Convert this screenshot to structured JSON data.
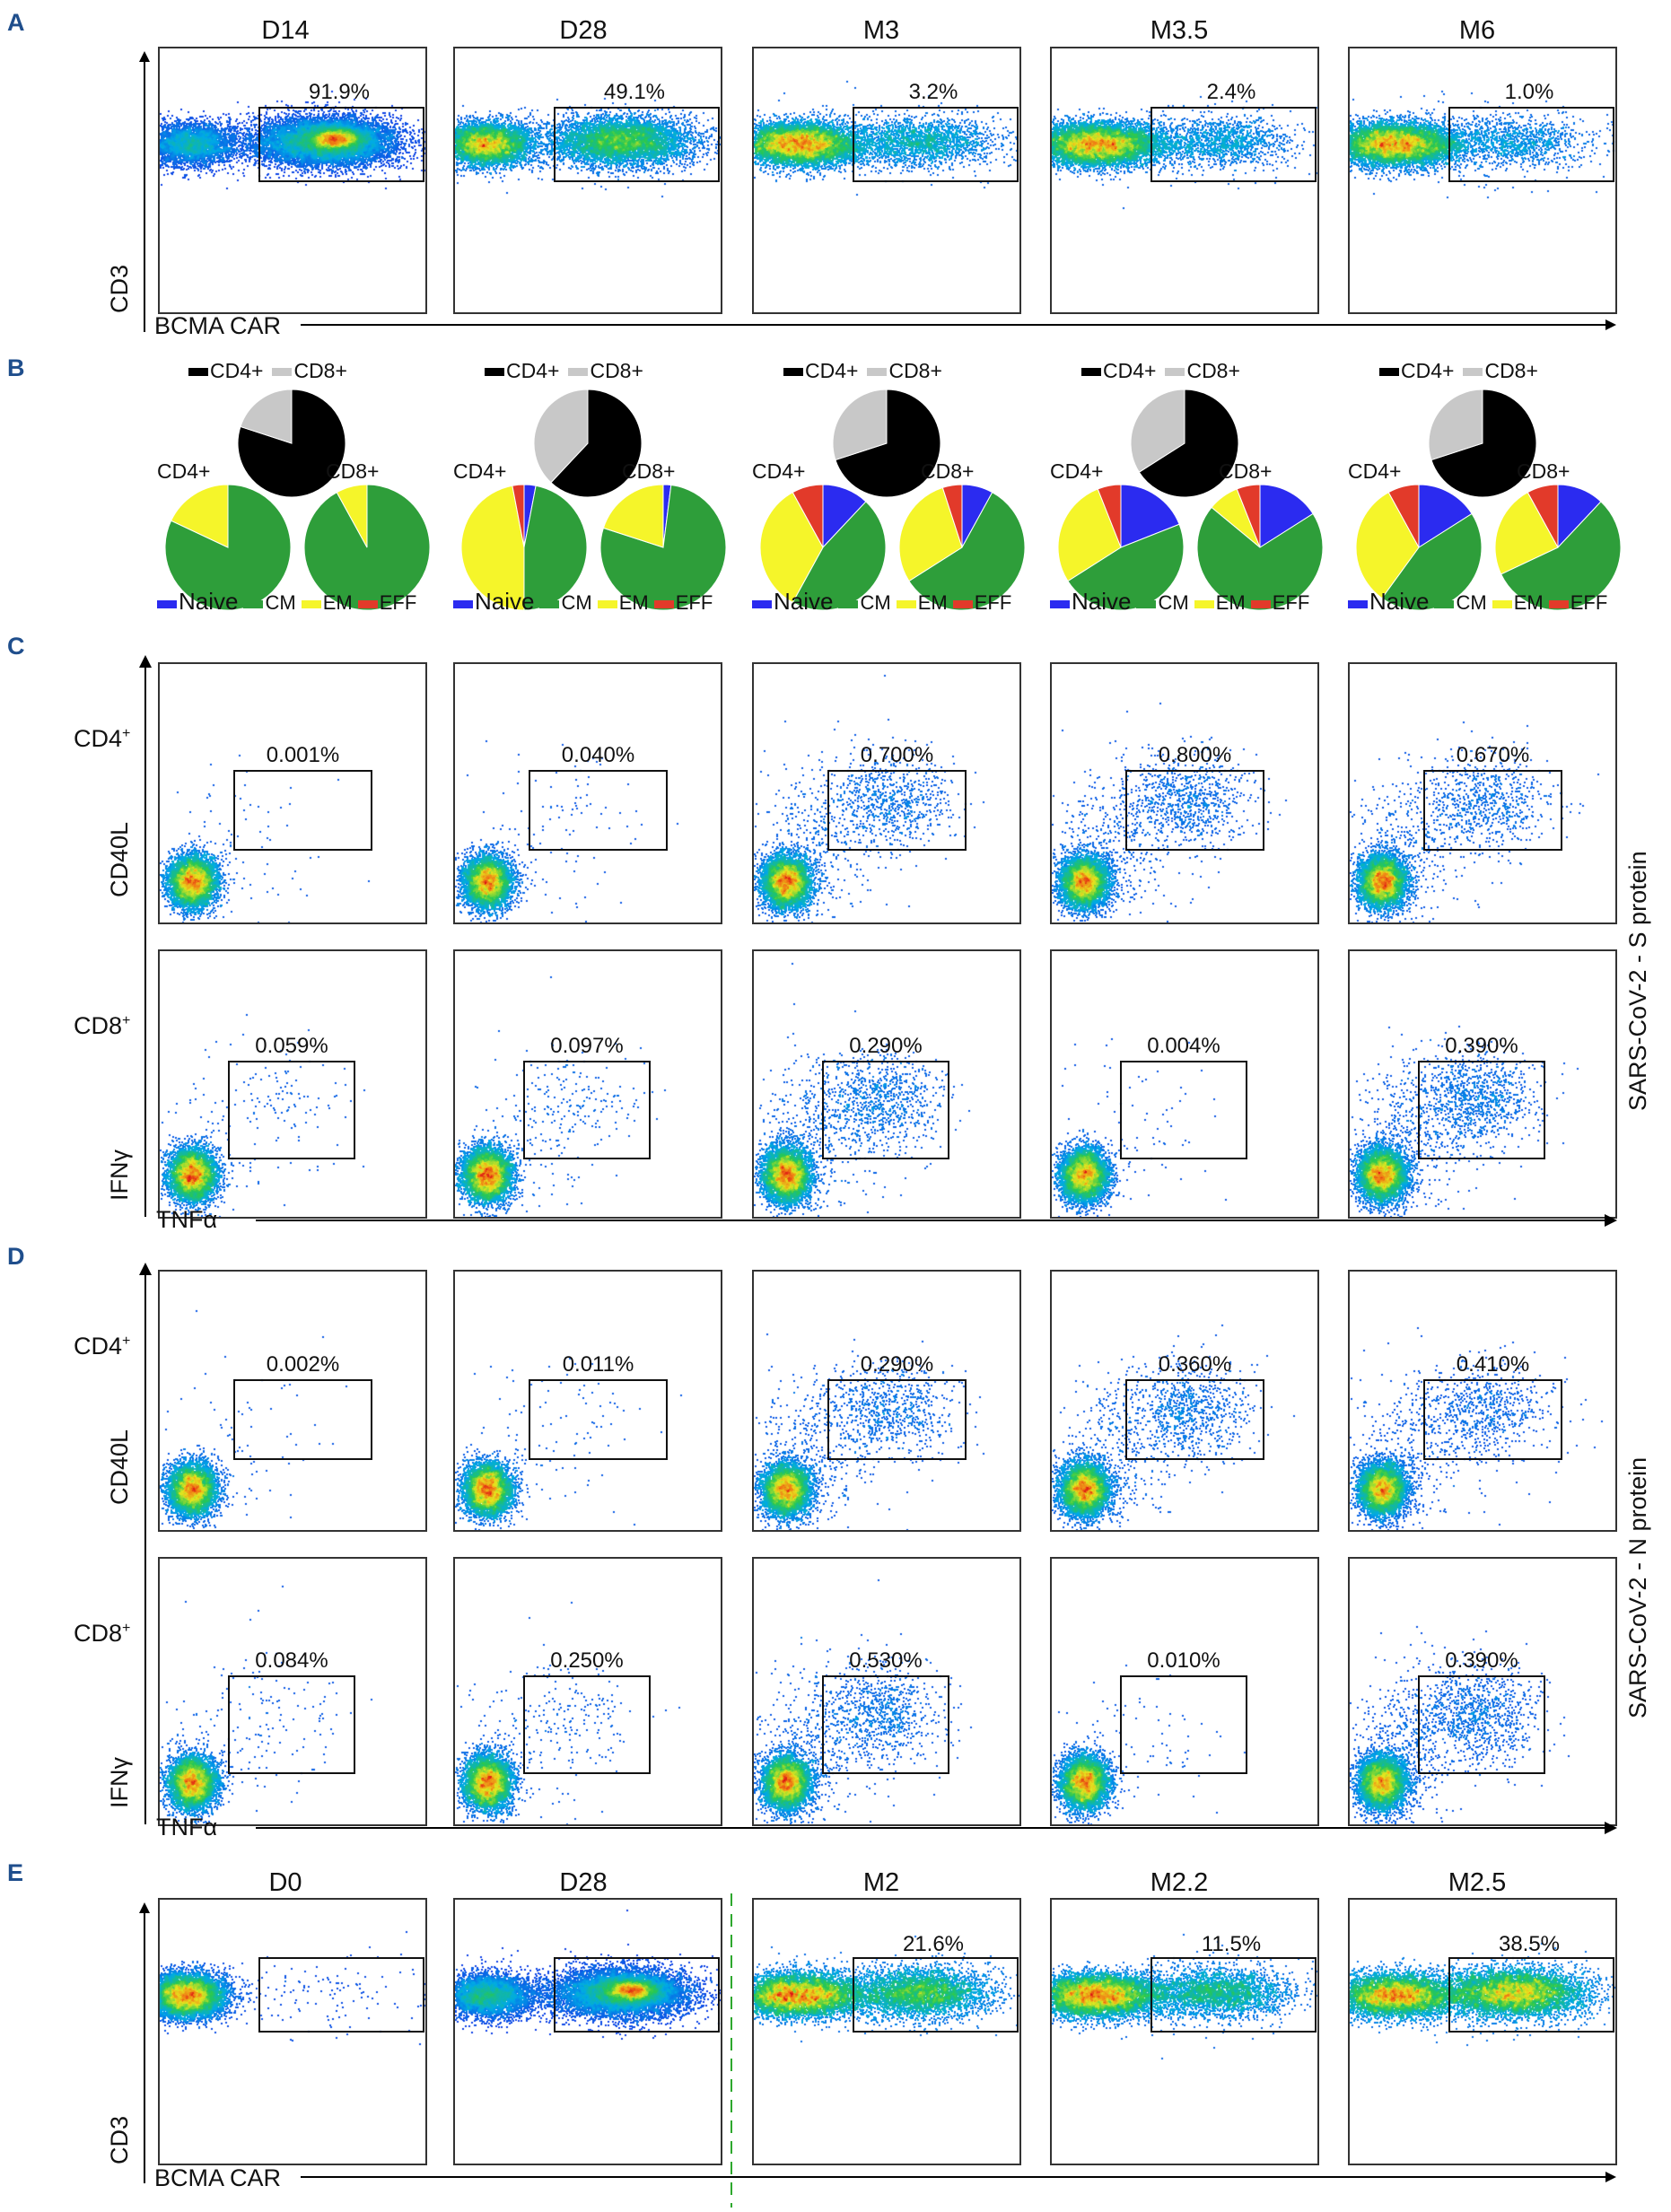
{
  "panel_labels": {
    "A": "A",
    "B": "B",
    "C": "C",
    "D": "D",
    "E": "E"
  },
  "colors": {
    "naive": "#2b2bf0",
    "cm": "#2e9e3a",
    "em": "#f5f52a",
    "eff": "#e23a2a",
    "cd4": "#000000",
    "cd8": "#c8c8c8"
  },
  "panelA": {
    "columns": [
      "D14",
      "D28",
      "M3",
      "M3.5",
      "M6"
    ],
    "percentages": [
      "91.9%",
      "49.1%",
      "3.2%",
      "2.4%",
      "1.0%"
    ],
    "ylabel": "CD3",
    "xlabel": "BCMA CAR"
  },
  "panelB": {
    "cd4_label": "CD4+",
    "cd8_label": "CD8+",
    "legend": {
      "naive": "Naive",
      "cm": "CM",
      "em": "EM",
      "eff": "EFF"
    },
    "chart_data": {
      "type": "pie",
      "columns": [
        {
          "cd4cd8": [
            0.8,
            0.2
          ],
          "cd4": [
            0.0,
            0.82,
            0.18,
            0.0
          ],
          "cd8": [
            0.0,
            0.92,
            0.08,
            0.0
          ]
        },
        {
          "cd4cd8": [
            0.62,
            0.38
          ],
          "cd4": [
            0.03,
            0.47,
            0.47,
            0.03
          ],
          "cd8": [
            0.02,
            0.78,
            0.2,
            0.0
          ]
        },
        {
          "cd4cd8": [
            0.7,
            0.3
          ],
          "cd4": [
            0.12,
            0.46,
            0.34,
            0.08
          ],
          "cd8": [
            0.08,
            0.58,
            0.29,
            0.05
          ]
        },
        {
          "cd4cd8": [
            0.66,
            0.34
          ],
          "cd4": [
            0.19,
            0.47,
            0.28,
            0.06
          ],
          "cd8": [
            0.16,
            0.7,
            0.08,
            0.06
          ]
        },
        {
          "cd4cd8": [
            0.7,
            0.3
          ],
          "cd4": [
            0.16,
            0.44,
            0.32,
            0.08
          ],
          "cd8": [
            0.12,
            0.56,
            0.24,
            0.08
          ]
        }
      ]
    }
  },
  "panelC": {
    "cd4_pcts": [
      "0.001%",
      "0.040%",
      "0.700%",
      "0.800%",
      "0.670%"
    ],
    "cd8_pcts": [
      "0.059%",
      "0.097%",
      "0.290%",
      "0.004%",
      "0.390%"
    ],
    "row1": "CD4",
    "row2": "CD8",
    "sup": "+",
    "ylabel_top": "CD40L",
    "ylabel_bottom": "IFNγ",
    "xlabel": "TNFα",
    "side": "SARS-CoV-2 - S protein"
  },
  "panelD": {
    "cd4_pcts": [
      "0.002%",
      "0.011%",
      "0.290%",
      "0.360%",
      "0.410%"
    ],
    "cd8_pcts": [
      "0.084%",
      "0.250%",
      "0.530%",
      "0.010%",
      "0.390%"
    ],
    "row1": "CD4",
    "row2": "CD8",
    "sup": "+",
    "ylabel_top": "CD40L",
    "ylabel_bottom": "IFNγ",
    "xlabel": "TNFα",
    "side": "SARS-CoV-2 - N protein"
  },
  "panelE": {
    "columns": [
      "D0",
      "D28",
      "M2",
      "M2.2",
      "M2.5"
    ],
    "percentages": [
      "",
      "",
      "21.6%",
      "11.5%",
      "38.5%"
    ],
    "ylabel": "CD3",
    "xlabel": "BCMA CAR"
  }
}
